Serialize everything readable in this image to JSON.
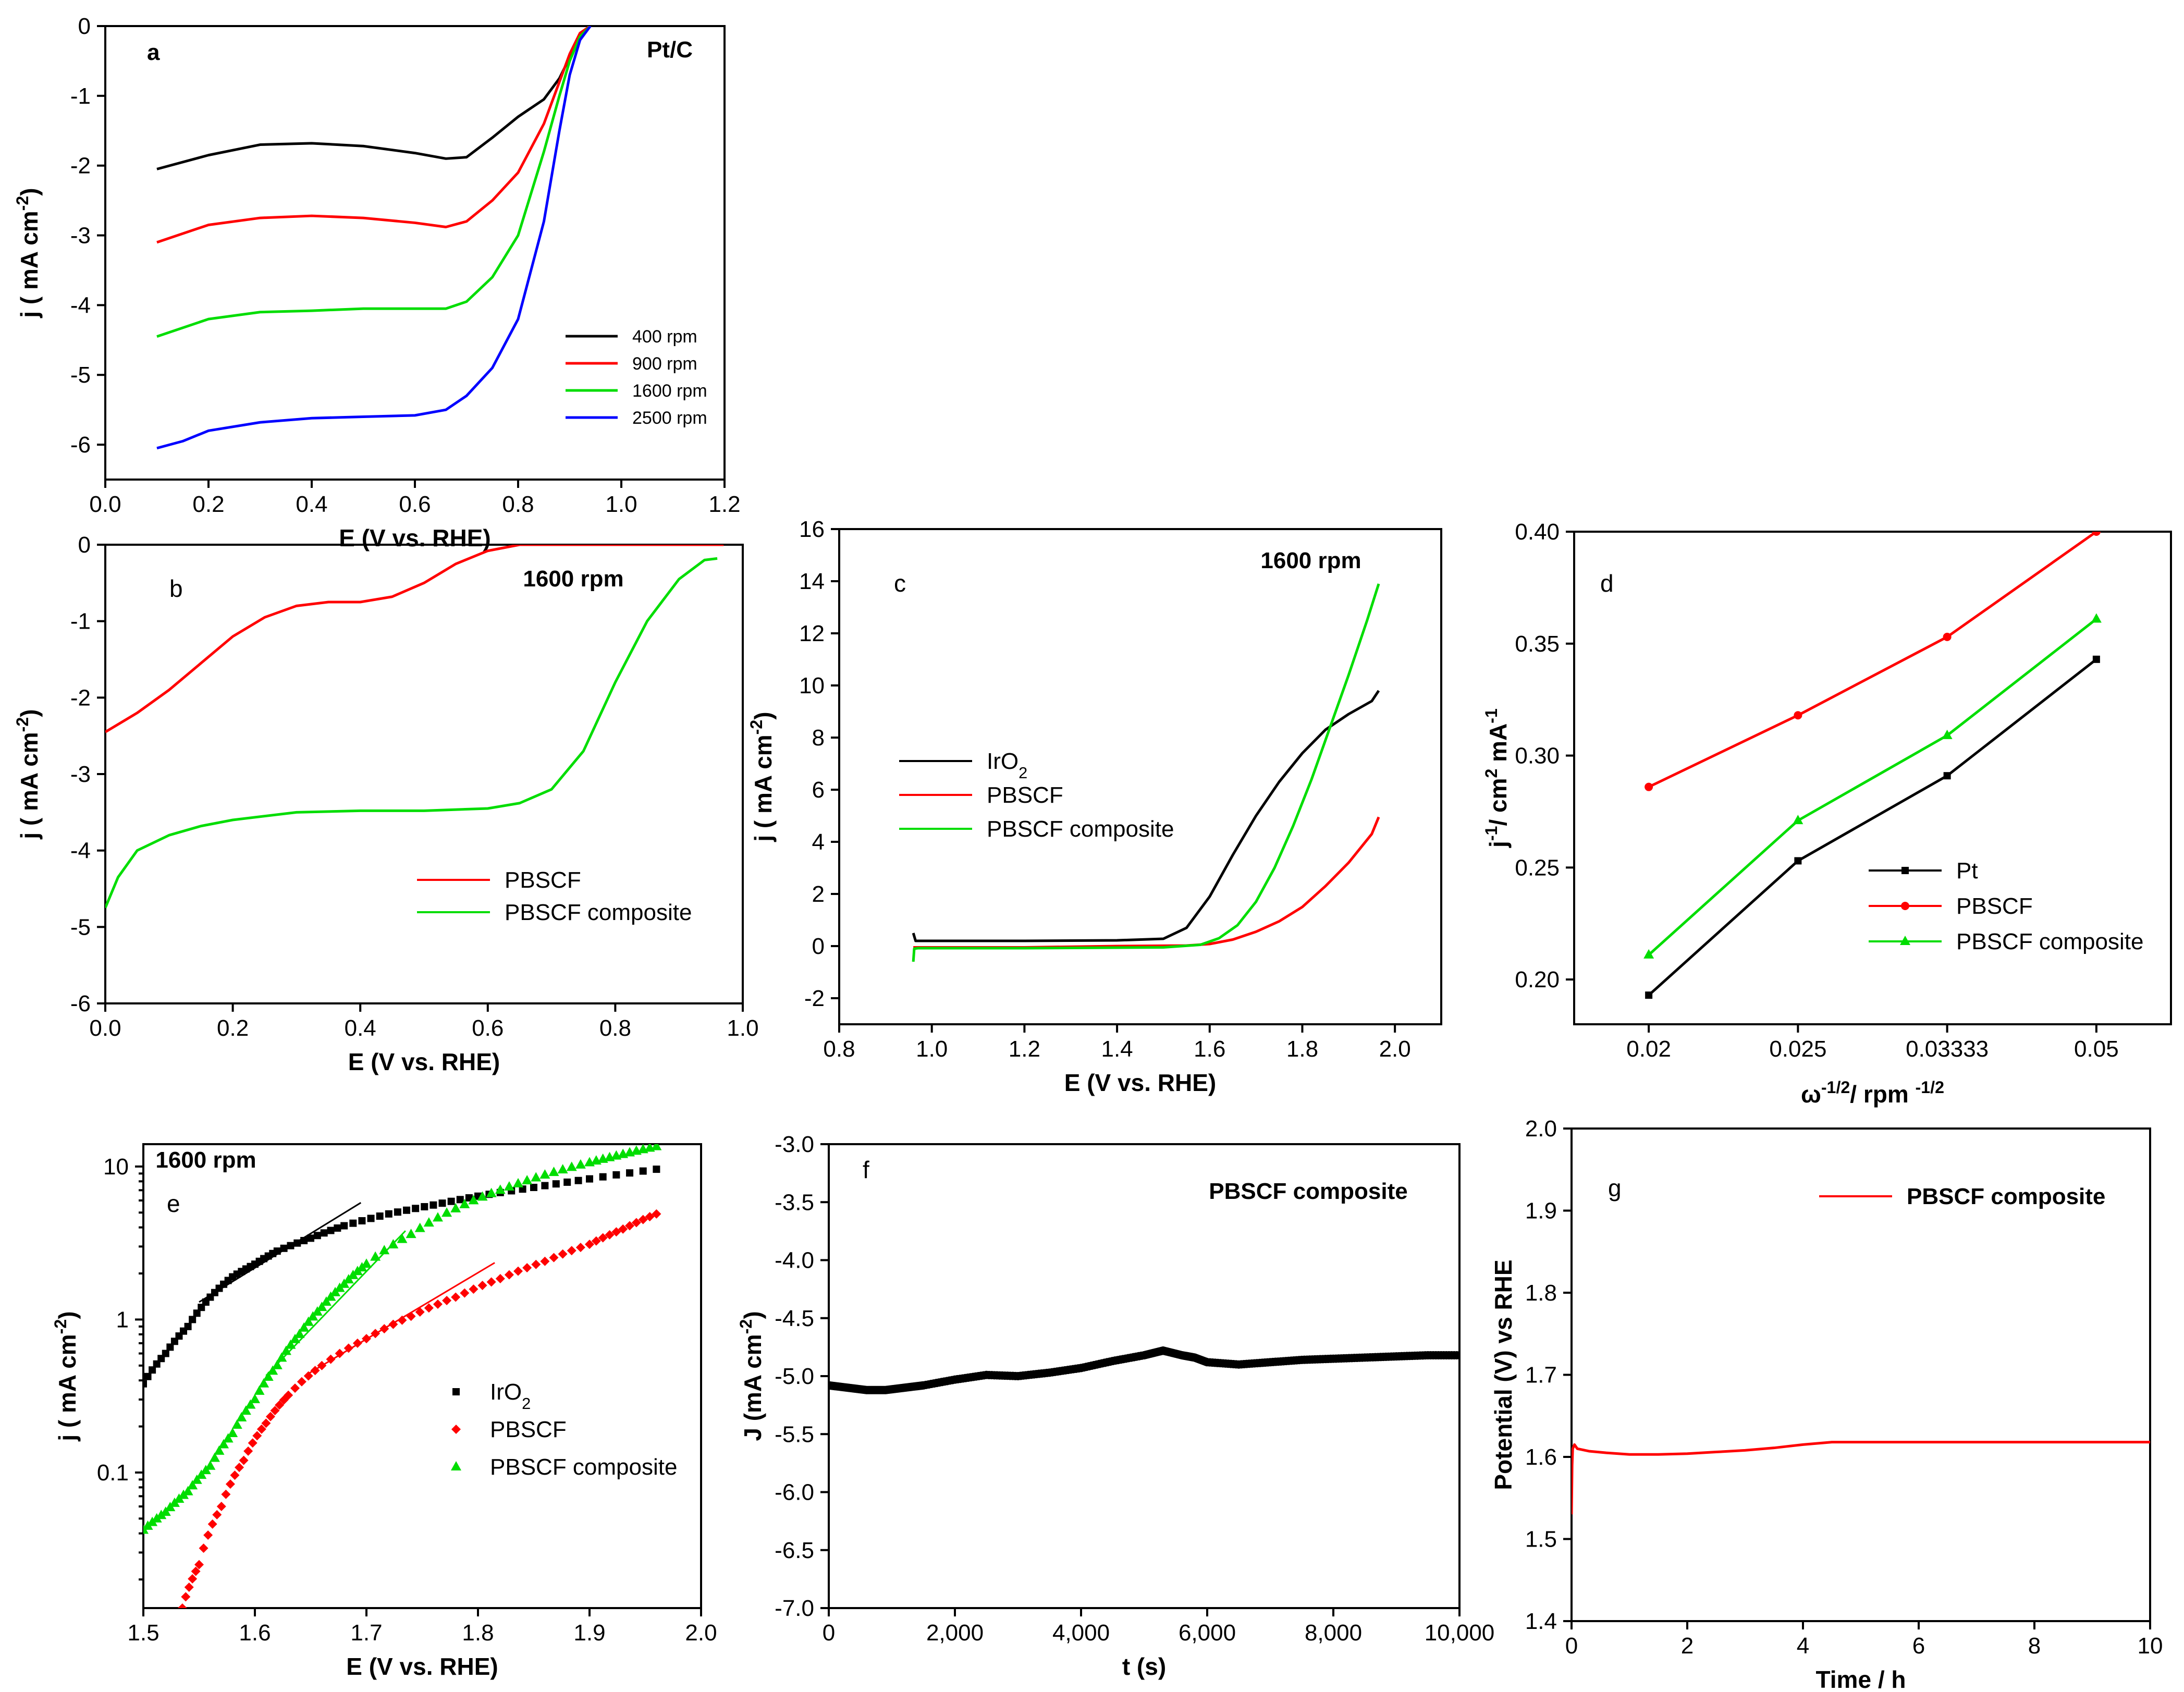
{
  "figure": {
    "colors": {
      "black": "#000000",
      "red": "#ff0000",
      "green": "#00dd00",
      "blue": "#0000ff"
    }
  },
  "chart_data": [
    {
      "id": "a",
      "panel_label": "a",
      "type": "line",
      "annotation": "Pt/C",
      "xlabel": "E (V vs. RHE)",
      "ylabel": "j ( mA cm-2)",
      "xlim": [
        0.0,
        1.2
      ],
      "ylim": [
        -6.5,
        0
      ],
      "xticks": [
        "0.0",
        "0.2",
        "0.4",
        "0.6",
        "0.8",
        "1.0",
        "1.2"
      ],
      "yticks": [
        "0",
        "-1",
        "-2",
        "-3",
        "-4",
        "-5",
        "-6"
      ],
      "legend_position": "lower-right",
      "series": [
        {
          "name": "400 rpm",
          "color": "#000000",
          "x": [
            0.1,
            0.2,
            0.3,
            0.4,
            0.5,
            0.6,
            0.66,
            0.7,
            0.75,
            0.8,
            0.85,
            0.88,
            0.9,
            0.92,
            0.94
          ],
          "y": [
            -2.05,
            -1.85,
            -1.7,
            -1.68,
            -1.72,
            -1.82,
            -1.9,
            -1.88,
            -1.6,
            -1.3,
            -1.05,
            -0.75,
            -0.45,
            -0.15,
            0
          ]
        },
        {
          "name": "900 rpm",
          "color": "#ff0000",
          "x": [
            0.1,
            0.2,
            0.3,
            0.4,
            0.5,
            0.6,
            0.66,
            0.7,
            0.75,
            0.8,
            0.85,
            0.88,
            0.9,
            0.92,
            0.94
          ],
          "y": [
            -3.1,
            -2.85,
            -2.75,
            -2.72,
            -2.75,
            -2.82,
            -2.88,
            -2.8,
            -2.5,
            -2.1,
            -1.4,
            -0.8,
            -0.4,
            -0.1,
            0
          ]
        },
        {
          "name": "1600 rpm",
          "color": "#00dd00",
          "x": [
            0.1,
            0.2,
            0.3,
            0.4,
            0.5,
            0.6,
            0.66,
            0.7,
            0.75,
            0.8,
            0.85,
            0.88,
            0.9,
            0.92,
            0.94
          ],
          "y": [
            -4.45,
            -4.2,
            -4.1,
            -4.08,
            -4.05,
            -4.05,
            -4.05,
            -3.95,
            -3.6,
            -3.0,
            -1.8,
            -1.0,
            -0.5,
            -0.15,
            0
          ]
        },
        {
          "name": "2500 rpm",
          "color": "#0000ff",
          "x": [
            0.1,
            0.15,
            0.2,
            0.3,
            0.4,
            0.5,
            0.6,
            0.66,
            0.7,
            0.75,
            0.8,
            0.85,
            0.88,
            0.9,
            0.92,
            0.94
          ],
          "y": [
            -6.05,
            -5.95,
            -5.8,
            -5.68,
            -5.62,
            -5.6,
            -5.58,
            -5.5,
            -5.3,
            -4.9,
            -4.2,
            -2.8,
            -1.5,
            -0.7,
            -0.2,
            0
          ]
        }
      ]
    },
    {
      "id": "b",
      "panel_label": "b",
      "type": "line",
      "annotation": "1600 rpm",
      "xlabel": "E (V vs. RHE)",
      "ylabel": "j ( mA cm-2)",
      "xlim": [
        0.0,
        1.0
      ],
      "ylim": [
        -6,
        0
      ],
      "xticks": [
        "0.0",
        "0.2",
        "0.4",
        "0.6",
        "0.8",
        "1.0"
      ],
      "yticks": [
        "0",
        "-1",
        "-2",
        "-3",
        "-4",
        "-5",
        "-6"
      ],
      "legend_position": "lower-right",
      "series": [
        {
          "name": "PBSCF",
          "color": "#ff0000",
          "x": [
            0.0,
            0.05,
            0.1,
            0.15,
            0.2,
            0.25,
            0.3,
            0.35,
            0.4,
            0.45,
            0.5,
            0.55,
            0.6,
            0.65,
            0.7,
            0.8,
            0.9,
            0.97
          ],
          "y": [
            -2.45,
            -2.2,
            -1.9,
            -1.55,
            -1.2,
            -0.95,
            -0.8,
            -0.75,
            -0.75,
            -0.68,
            -0.5,
            -0.25,
            -0.08,
            0,
            0,
            0,
            0,
            0
          ]
        },
        {
          "name": "PBSCF composite",
          "color": "#00dd00",
          "x": [
            0.0,
            0.02,
            0.05,
            0.1,
            0.15,
            0.2,
            0.3,
            0.4,
            0.5,
            0.6,
            0.65,
            0.7,
            0.75,
            0.8,
            0.85,
            0.9,
            0.94,
            0.96
          ],
          "y": [
            -4.75,
            -4.35,
            -4.0,
            -3.8,
            -3.68,
            -3.6,
            -3.5,
            -3.48,
            -3.48,
            -3.45,
            -3.38,
            -3.2,
            -2.7,
            -1.8,
            -1.0,
            -0.45,
            -0.2,
            -0.18
          ]
        }
      ]
    },
    {
      "id": "c",
      "panel_label": "c",
      "type": "line",
      "annotation": "1600 rpm",
      "xlabel": "E (V vs. RHE)",
      "ylabel": "j ( mA cm-2)",
      "xlim": [
        0.8,
        2.1
      ],
      "ylim": [
        -3,
        16
      ],
      "xticks": [
        "0.8",
        "1.0",
        "1.2",
        "1.4",
        "1.6",
        "1.8",
        "2.0"
      ],
      "yticks": [
        "-2",
        "0",
        "2",
        "4",
        "6",
        "8",
        "10",
        "12",
        "14",
        "16"
      ],
      "legend_position": "middle-left",
      "series": [
        {
          "name": "IrO2",
          "color": "#000000",
          "x": [
            0.96,
            0.965,
            0.98,
            1.2,
            1.4,
            1.5,
            1.55,
            1.6,
            1.65,
            1.7,
            1.75,
            1.8,
            1.85,
            1.9,
            1.95,
            1.965
          ],
          "y": [
            0.5,
            0.2,
            0.2,
            0.2,
            0.22,
            0.28,
            0.7,
            1.9,
            3.5,
            5.0,
            6.3,
            7.4,
            8.3,
            8.9,
            9.4,
            9.8
          ]
        },
        {
          "name": "PBSCF",
          "color": "#ff0000",
          "x": [
            0.96,
            1.2,
            1.4,
            1.55,
            1.6,
            1.65,
            1.7,
            1.75,
            1.8,
            1.85,
            1.9,
            1.95,
            1.965
          ],
          "y": [
            -0.05,
            -0.05,
            0,
            0.02,
            0.08,
            0.25,
            0.55,
            0.95,
            1.5,
            2.3,
            3.2,
            4.3,
            4.95
          ]
        },
        {
          "name": "PBSCF composite",
          "color": "#00dd00",
          "x": [
            0.96,
            0.962,
            0.97,
            1.2,
            1.5,
            1.58,
            1.62,
            1.66,
            1.7,
            1.74,
            1.78,
            1.82,
            1.86,
            1.9,
            1.94,
            1.965
          ],
          "y": [
            -0.6,
            -0.1,
            -0.08,
            -0.08,
            -0.05,
            0.05,
            0.3,
            0.8,
            1.7,
            3.0,
            4.6,
            6.4,
            8.4,
            10.4,
            12.5,
            13.9
          ]
        }
      ]
    },
    {
      "id": "d",
      "panel_label": "d",
      "type": "line",
      "annotation": "",
      "xlabel": "ω-1/2/ rpm -1/2",
      "ylabel": "j-1/ cm2 mA-1",
      "x_categories": [
        "0.02",
        "0.025",
        "0.03333",
        "0.05"
      ],
      "ylim": [
        0.18,
        0.4
      ],
      "yticks": [
        "0.20",
        "0.25",
        "0.30",
        "0.35",
        "0.40"
      ],
      "legend_position": "lower-right",
      "series": [
        {
          "name": "Pt",
          "color": "#000000",
          "marker": "square",
          "values": [
            0.193,
            0.253,
            0.291,
            0.343
          ]
        },
        {
          "name": "PBSCF",
          "color": "#ff0000",
          "marker": "circle",
          "values": [
            0.286,
            0.318,
            0.353,
            0.4
          ]
        },
        {
          "name": "PBSCF composite",
          "color": "#00dd00",
          "marker": "triangle",
          "values": [
            0.211,
            0.271,
            0.309,
            0.361
          ]
        }
      ]
    },
    {
      "id": "e",
      "panel_label": "e",
      "type": "scatter",
      "annotation": "1600 rpm",
      "xlabel": "E (V vs. RHE)",
      "ylabel": "j ( mA cm-2)",
      "xlim": [
        1.5,
        2.0
      ],
      "ylim_log": [
        0.013,
        14
      ],
      "yscale": "log",
      "xticks": [
        "1.5",
        "1.6",
        "1.7",
        "1.8",
        "1.9",
        "2.0"
      ],
      "yticks": [
        "0.1",
        "1",
        "10"
      ],
      "legend_position": "lower-right",
      "series": [
        {
          "name": "IrO2",
          "color": "#000000",
          "marker": "square",
          "x": [
            1.5,
            1.52,
            1.54,
            1.56,
            1.58,
            1.6,
            1.62,
            1.65,
            1.68,
            1.72,
            1.76,
            1.8,
            1.85,
            1.9,
            1.96
          ],
          "y": [
            0.38,
            0.6,
            0.9,
            1.4,
            1.9,
            2.3,
            2.8,
            3.4,
            4.1,
            4.9,
            5.6,
            6.4,
            7.3,
            8.3,
            9.6
          ]
        },
        {
          "name": "PBSCF",
          "color": "#ff0000",
          "marker": "diamond",
          "x": [
            1.535,
            1.55,
            1.57,
            1.59,
            1.61,
            1.63,
            1.66,
            1.7,
            1.74,
            1.78,
            1.82,
            1.86,
            1.9,
            1.93,
            1.96
          ],
          "y": [
            0.013,
            0.025,
            0.06,
            0.12,
            0.21,
            0.32,
            0.5,
            0.75,
            1.05,
            1.4,
            1.85,
            2.4,
            3.1,
            3.9,
            4.9
          ]
        },
        {
          "name": "PBSCF composite",
          "color": "#00dd00",
          "marker": "triangle",
          "x": [
            1.5,
            1.52,
            1.54,
            1.56,
            1.58,
            1.6,
            1.62,
            1.64,
            1.66,
            1.68,
            1.7,
            1.74,
            1.78,
            1.82,
            1.86,
            1.9,
            1.93,
            1.96
          ],
          "y": [
            0.042,
            0.055,
            0.075,
            0.11,
            0.18,
            0.3,
            0.5,
            0.8,
            1.2,
            1.7,
            2.3,
            3.6,
            5.3,
            7.0,
            8.8,
            10.6,
            12.0,
            13.5
          ]
        }
      ],
      "tafel_lines": [
        {
          "color": "#000000",
          "x": [
            1.55,
            1.695
          ],
          "y": [
            1.3,
            5.8
          ]
        },
        {
          "color": "#00dd00",
          "x": [
            1.61,
            1.735
          ],
          "y": [
            0.43,
            3.8
          ]
        },
        {
          "color": "#ff0000",
          "x": [
            1.645,
            1.815
          ],
          "y": [
            0.43,
            2.35
          ]
        }
      ]
    },
    {
      "id": "f",
      "panel_label": "f",
      "type": "scatter",
      "annotation": "PBSCF composite",
      "xlabel": "t (s)",
      "ylabel": "J (mA cm-2)",
      "xlim": [
        0,
        10000
      ],
      "ylim": [
        -7.0,
        -3.0
      ],
      "xticks": [
        "0",
        "2,000",
        "4,000",
        "6,000",
        "8,000",
        "10,000"
      ],
      "yticks": [
        "-3.0",
        "-3.5",
        "-4.0",
        "-4.5",
        "-5.0",
        "-5.5",
        "-6.0",
        "-6.5",
        "-7.0"
      ],
      "series": [
        {
          "name": "PBSCF composite",
          "color": "#000000",
          "marker": "circle",
          "x": [
            0,
            300,
            600,
            900,
            1200,
            1500,
            2000,
            2500,
            3000,
            3500,
            4000,
            4500,
            5000,
            5300,
            5600,
            5800,
            6000,
            6500,
            7000,
            7500,
            8000,
            8500,
            9000,
            9500,
            10000
          ],
          "y": [
            -5.08,
            -5.1,
            -5.12,
            -5.12,
            -5.1,
            -5.08,
            -5.03,
            -4.99,
            -5.0,
            -4.97,
            -4.93,
            -4.87,
            -4.82,
            -4.78,
            -4.82,
            -4.84,
            -4.88,
            -4.9,
            -4.88,
            -4.86,
            -4.85,
            -4.84,
            -4.83,
            -4.82,
            -4.82
          ]
        }
      ]
    },
    {
      "id": "g",
      "panel_label": "g",
      "type": "line",
      "annotation": "",
      "xlabel": "Time / h",
      "ylabel": "Potential (V) vs RHE",
      "xlim": [
        0,
        10
      ],
      "ylim": [
        1.4,
        2.0
      ],
      "xticks": [
        "0",
        "2",
        "4",
        "6",
        "8",
        "10"
      ],
      "yticks": [
        "1.4",
        "1.5",
        "1.6",
        "1.7",
        "1.8",
        "1.9",
        "2.0"
      ],
      "legend_position": "top-right",
      "series": [
        {
          "name": "PBSCF composite",
          "color": "#ff0000",
          "x": [
            0,
            0.01,
            0.02,
            0.05,
            0.1,
            0.3,
            0.6,
            1,
            1.5,
            2,
            2.5,
            3,
            3.5,
            4,
            4.5,
            5,
            6,
            7,
            8,
            9,
            10
          ],
          "y": [
            1.53,
            1.59,
            1.61,
            1.615,
            1.61,
            1.607,
            1.605,
            1.603,
            1.603,
            1.604,
            1.606,
            1.608,
            1.611,
            1.615,
            1.618,
            1.618,
            1.618,
            1.618,
            1.618,
            1.618,
            1.618
          ]
        }
      ]
    }
  ]
}
